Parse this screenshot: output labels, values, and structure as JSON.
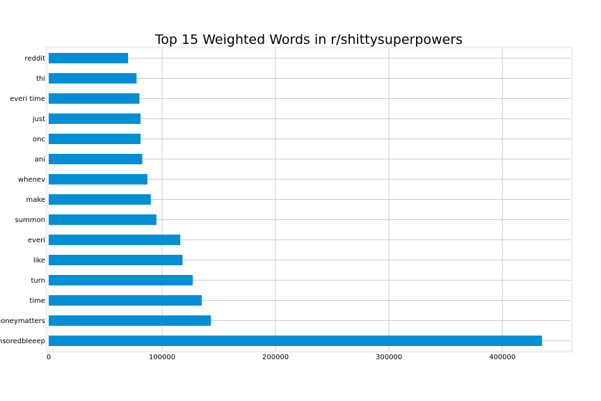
{
  "chart_data": {
    "type": "bar",
    "orientation": "horizontal",
    "title": "Top 15 Weighted Words in r/shittysuperpowers",
    "xlabel": "",
    "ylabel": "",
    "categories": [
      "reddit",
      "thi",
      "everi time",
      "just",
      "onc",
      "ani",
      "whenev",
      "make",
      "summon",
      "everi",
      "like",
      "turn",
      "time",
      "moneymatters",
      "censoredbleeep"
    ],
    "values": [
      70000,
      77500,
      80000,
      81000,
      81000,
      82500,
      87000,
      90000,
      95000,
      116000,
      118000,
      127000,
      135000,
      143000,
      435000
    ],
    "xlim": [
      0,
      460000
    ],
    "xticks": [
      0,
      100000,
      200000,
      300000,
      400000
    ],
    "xtick_labels": [
      "0",
      "100000",
      "200000",
      "300000",
      "400000"
    ],
    "grid": true,
    "bar_color": "#008fd5",
    "background_color": "#ffffff",
    "plot_frame_color": "#f0f0f0",
    "grid_color": "#cbcbcb"
  }
}
